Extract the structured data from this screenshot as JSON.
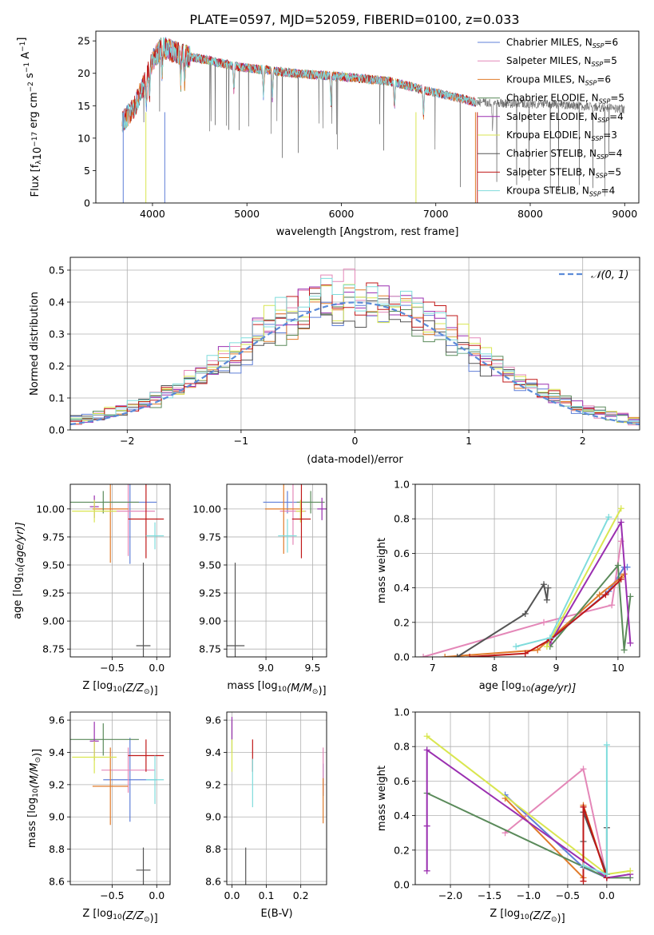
{
  "figure_title": "PLATE=0597, MJD=52059, FIBERID=0100, z=0.033",
  "colors": {
    "Chabrier MILES": "#5f7fd8",
    "Salpeter MILES": "#e487b8",
    "Kroupa MILES": "#e07b2a",
    "Chabrier ELODIE": "#5a8a5a",
    "Salpeter ELODIE": "#9a2fb0",
    "Kroupa ELODIE": "#d9e650",
    "Chabrier STELIB": "#555555",
    "Salpeter STELIB": "#c01818",
    "Kroupa STELIB": "#7fdcdc",
    "normal": "#5b8bd8"
  },
  "chart_data": [
    {
      "id": "spectrum",
      "type": "line",
      "xlabel": "wavelength [Angstrom, rest frame]",
      "ylabel_main": "Flux [f",
      "ylabel_sub": "λ",
      "ylabel_rest": "10",
      "ylabel_exp": "−17",
      "ylabel_units": " erg cm",
      "ylabel_exp2": "−2",
      "ylabel_s": " s",
      "ylabel_exp3": "−1",
      "ylabel_A": " A",
      "ylabel_exp4": "−1",
      "ylabel_end": "]",
      "xlim": [
        3400,
        9150
      ],
      "ylim": [
        0,
        26.5
      ],
      "xticks": [
        4000,
        5000,
        6000,
        7000,
        8000,
        9000
      ],
      "yticks": [
        0,
        5,
        10,
        15,
        20,
        25
      ],
      "legend_position": "top-right",
      "legend": [
        {
          "name": "Chabrier MILES",
          "nssp": "6"
        },
        {
          "name": "Salpeter MILES",
          "nssp": "5"
        },
        {
          "name": "Kroupa MILES",
          "nssp": "6"
        },
        {
          "name": "Chabrier ELODIE",
          "nssp": "5"
        },
        {
          "name": "Salpeter ELODIE",
          "nssp": "4"
        },
        {
          "name": "Kroupa ELODIE",
          "nssp": "3"
        },
        {
          "name": "Chabrier STELIB",
          "nssp": "4"
        },
        {
          "name": "Salpeter STELIB",
          "nssp": "5"
        },
        {
          "name": "Kroupa STELIB",
          "nssp": "4"
        }
      ],
      "continuum": [
        [
          3680,
          12.5
        ],
        [
          3800,
          14.5
        ],
        [
          3900,
          18
        ],
        [
          4000,
          22
        ],
        [
          4100,
          24
        ],
        [
          4200,
          23.5
        ],
        [
          4400,
          22.5
        ],
        [
          4600,
          22
        ],
        [
          4900,
          21
        ],
        [
          5200,
          20.5
        ],
        [
          5500,
          20
        ],
        [
          6000,
          19.5
        ],
        [
          6500,
          18.8
        ],
        [
          7000,
          17
        ],
        [
          7300,
          16
        ],
        [
          7420,
          15.5
        ],
        [
          8000,
          15.3
        ],
        [
          8500,
          15
        ],
        [
          9000,
          14.5
        ]
      ],
      "series_ranges": [
        {
          "name": "Chabrier STELIB",
          "range": [
            3680,
            9000
          ]
        },
        {
          "name": "Chabrier ELODIE",
          "range": [
            3900,
            6800
          ]
        },
        {
          "name": "Kroupa ELODIE",
          "range": [
            3900,
            6800
          ]
        },
        {
          "name": "Salpeter ELODIE",
          "range": [
            3900,
            6800
          ]
        },
        {
          "name": "Chabrier MILES",
          "range": [
            3680,
            7420
          ]
        },
        {
          "name": "Salpeter MILES",
          "range": [
            3680,
            7420
          ]
        },
        {
          "name": "Kroupa MILES",
          "range": [
            3680,
            7420
          ]
        },
        {
          "name": "Salpeter STELIB",
          "range": [
            3680,
            7420
          ]
        },
        {
          "name": "Kroupa STELIB",
          "range": [
            3680,
            7420
          ]
        }
      ]
    },
    {
      "id": "residuals",
      "type": "step",
      "xlabel": "(data-model)/error",
      "ylabel": "Normed distribution",
      "xlim": [
        -2.5,
        2.5
      ],
      "ylim": [
        0,
        0.54
      ],
      "xticks": [
        -2,
        -1,
        0,
        1,
        2
      ],
      "yticks": [
        0.0,
        0.1,
        0.2,
        0.3,
        0.4,
        0.5
      ],
      "grid": true,
      "legend_position": "top-right",
      "legend_label": "𝒩(0, 1)",
      "bin_width": 0.1
    },
    {
      "id": "age_vs_Z",
      "type": "errorbar",
      "xlabel_main": "Z [log",
      "xlabel_sub": "10",
      "xlabel_rest": "(Z/Z",
      "xlabel_sub2": "⊙",
      "xlabel_end": ")]",
      "ylabel_main": "age  [log",
      "ylabel_sub": "10",
      "ylabel_rest": "(age/yr)]",
      "xlim": [
        -0.97,
        0.15
      ],
      "ylim": [
        8.68,
        10.22
      ],
      "xticks": [
        -0.5,
        0.0
      ],
      "xticklabels": [
        "−0.5",
        "0.0"
      ],
      "yticks": [
        8.75,
        9.0,
        9.25,
        9.5,
        9.75,
        10.0
      ],
      "yticklabels": [
        "8.75",
        "9.00",
        "9.25",
        "9.50",
        "9.75",
        "10.00"
      ],
      "points": [
        {
          "name": "Chabrier MILES",
          "x": -0.3,
          "xerr": 0.3,
          "y": 10.06,
          "yerr": 0.55
        },
        {
          "name": "Salpeter MILES",
          "x": -0.32,
          "xerr": 0.3,
          "y": 9.98,
          "yerr": 0.4
        },
        {
          "name": "Kroupa MILES",
          "x": -0.52,
          "xerr": 0.2,
          "y": 10.0,
          "yerr": 0.48
        },
        {
          "name": "Chabrier ELODIE",
          "x": -0.6,
          "xerr": 0.4,
          "y": 10.06,
          "yerr": 0.1
        },
        {
          "name": "Salpeter ELODIE",
          "x": -0.7,
          "xerr": 0.05,
          "y": 10.02,
          "yerr": 0.1
        },
        {
          "name": "Kroupa ELODIE",
          "x": -0.7,
          "xerr": 0.25,
          "y": 9.98,
          "yerr": 0.1
        },
        {
          "name": "Chabrier STELIB",
          "x": -0.15,
          "xerr": 0.08,
          "y": 8.78,
          "yerr": 0.74
        },
        {
          "name": "Salpeter STELIB",
          "x": -0.12,
          "xerr": 0.2,
          "y": 9.91,
          "yerr": 0.35
        },
        {
          "name": "Kroupa STELIB",
          "x": -0.02,
          "xerr": 0.1,
          "y": 9.76,
          "yerr": 0.12
        }
      ]
    },
    {
      "id": "age_vs_mass",
      "type": "errorbar",
      "xlabel_main": "mass [log",
      "xlabel_sub": "10",
      "xlabel_rest": "(M/M",
      "xlabel_sub2": "⊙",
      "xlabel_end": ")]",
      "xlim": [
        8.58,
        9.65
      ],
      "ylim": [
        8.68,
        10.22
      ],
      "xticks": [
        9.0,
        9.5
      ],
      "xticklabels": [
        "9.0",
        "9.5"
      ],
      "yticks": [
        8.75,
        9.0,
        9.25,
        9.5,
        9.75,
        10.0
      ],
      "yticklabels": [
        "8.75",
        "9.00",
        "9.25",
        "9.50",
        "9.75",
        "10.00"
      ],
      "points": [
        {
          "name": "Chabrier MILES",
          "x": 9.23,
          "xerr": 0.26,
          "y": 10.06,
          "yerr": 0.1
        },
        {
          "name": "Salpeter MILES",
          "x": 9.29,
          "xerr": 0.14,
          "y": 9.98,
          "yerr": 0.3
        },
        {
          "name": "Kroupa MILES",
          "x": 9.19,
          "xerr": 0.2,
          "y": 10.0,
          "yerr": 0.4
        },
        {
          "name": "Chabrier ELODIE",
          "x": 9.48,
          "xerr": 0.15,
          "y": 10.06,
          "yerr": 0.1
        },
        {
          "name": "Salpeter ELODIE",
          "x": 9.6,
          "xerr": 0.05,
          "y": 10.0,
          "yerr": 0.1
        },
        {
          "name": "Kroupa ELODIE",
          "x": 9.37,
          "xerr": 0.05,
          "y": 9.98,
          "yerr": 0.1
        },
        {
          "name": "Chabrier STELIB",
          "x": 8.67,
          "xerr": 0.1,
          "y": 8.78,
          "yerr": 0.74
        },
        {
          "name": "Salpeter STELIB",
          "x": 9.38,
          "xerr": 0.1,
          "y": 9.91,
          "yerr": 0.35
        },
        {
          "name": "Kroupa STELIB",
          "x": 9.23,
          "xerr": 0.1,
          "y": 9.76,
          "yerr": 0.15
        }
      ]
    },
    {
      "id": "weight_vs_age",
      "type": "line",
      "xlabel_main": "age  [log",
      "xlabel_sub": "10",
      "xlabel_rest": "(age/yr)]",
      "ylabel": "mass weight",
      "xlim": [
        6.72,
        10.35
      ],
      "ylim": [
        0,
        1.0
      ],
      "xticks": [
        7,
        8,
        9,
        10
      ],
      "yticks": [
        0.0,
        0.2,
        0.4,
        0.6,
        0.8,
        1.0
      ],
      "grid": true,
      "series": [
        {
          "name": "Chabrier MILES",
          "x": [
            8.85,
            9.85,
            10.1,
            10.15
          ],
          "y": [
            0.08,
            0.38,
            0.52,
            0.52
          ]
        },
        {
          "name": "Salpeter MILES",
          "x": [
            6.85,
            8.8,
            9.9,
            10.05
          ],
          "y": [
            0.0,
            0.2,
            0.3,
            0.67
          ]
        },
        {
          "name": "Kroupa MILES",
          "x": [
            7.2,
            8.7,
            9.7,
            10.05,
            10.1
          ],
          "y": [
            0.0,
            0.04,
            0.36,
            0.46,
            0.48
          ]
        },
        {
          "name": "Chabrier ELODIE",
          "x": [
            8.9,
            10.0,
            10.1,
            10.2
          ],
          "y": [
            0.06,
            0.53,
            0.04,
            0.35
          ]
        },
        {
          "name": "Salpeter ELODIE",
          "x": [
            8.9,
            10.05,
            10.2
          ],
          "y": [
            0.08,
            0.78,
            0.08
          ]
        },
        {
          "name": "Kroupa ELODIE",
          "x": [
            8.85,
            10.05
          ],
          "y": [
            0.06,
            0.86
          ]
        },
        {
          "name": "Chabrier STELIB",
          "x": [
            7.4,
            8.5,
            8.8,
            8.85,
            8.87
          ],
          "y": [
            0.0,
            0.25,
            0.42,
            0.33,
            0.4
          ]
        },
        {
          "name": "Salpeter STELIB",
          "x": [
            7.6,
            8.5,
            8.9,
            9.8,
            10.05
          ],
          "y": [
            0.0,
            0.02,
            0.1,
            0.36,
            0.45
          ]
        },
        {
          "name": "Kroupa STELIB",
          "x": [
            8.35,
            8.9,
            9.85
          ],
          "y": [
            0.06,
            0.11,
            0.81
          ]
        }
      ]
    },
    {
      "id": "mass_vs_Z",
      "type": "errorbar",
      "xlabel_main": "Z [log",
      "xlabel_sub": "10",
      "xlabel_rest": "(Z/Z",
      "xlabel_sub2": "⊙",
      "xlabel_end": ")]",
      "ylabel_main": "mass [log",
      "ylabel_sub": "10",
      "ylabel_rest": "(M/M",
      "ylabel_sub2": "⊙",
      "ylabel_end": ")]",
      "xlim": [
        -0.97,
        0.15
      ],
      "ylim": [
        8.58,
        9.65
      ],
      "xticks": [
        -0.5,
        0.0
      ],
      "xticklabels": [
        "−0.5",
        "0.0"
      ],
      "yticks": [
        8.6,
        8.8,
        9.0,
        9.2,
        9.4,
        9.6
      ],
      "yticklabels": [
        "8.6",
        "8.8",
        "9.0",
        "9.2",
        "9.4",
        "9.6"
      ],
      "points": [
        {
          "name": "Chabrier MILES",
          "x": -0.3,
          "xerr": 0.3,
          "y": 9.23,
          "yerr": 0.26
        },
        {
          "name": "Salpeter MILES",
          "x": -0.32,
          "xerr": 0.3,
          "y": 9.29,
          "yerr": 0.14
        },
        {
          "name": "Kroupa MILES",
          "x": -0.52,
          "xerr": 0.2,
          "y": 9.19,
          "yerr": 0.24
        },
        {
          "name": "Chabrier ELODIE",
          "x": -0.6,
          "xerr": 0.4,
          "y": 9.48,
          "yerr": 0.1
        },
        {
          "name": "Salpeter ELODIE",
          "x": -0.7,
          "xerr": 0.05,
          "y": 9.47,
          "yerr": 0.12
        },
        {
          "name": "Kroupa ELODIE",
          "x": -0.7,
          "xerr": 0.25,
          "y": 9.37,
          "yerr": 0.1
        },
        {
          "name": "Chabrier STELIB",
          "x": -0.15,
          "xerr": 0.08,
          "y": 8.67,
          "yerr": 0.14
        },
        {
          "name": "Salpeter STELIB",
          "x": -0.12,
          "xerr": 0.2,
          "y": 9.38,
          "yerr": 0.1
        },
        {
          "name": "Kroupa STELIB",
          "x": -0.02,
          "xerr": 0.1,
          "y": 9.23,
          "yerr": 0.15
        }
      ]
    },
    {
      "id": "mass_vs_ebv",
      "type": "errorbar",
      "xlabel": "E(B-V)",
      "xlim": [
        -0.015,
        0.275
      ],
      "ylim": [
        8.58,
        9.65
      ],
      "xticks": [
        0.0,
        0.1,
        0.2
      ],
      "xticklabels": [
        "0.0",
        "0.1",
        "0.2"
      ],
      "yticks": [
        8.6,
        8.8,
        9.0,
        9.2,
        9.4,
        9.6
      ],
      "yticklabels": [
        "8.6",
        "8.8",
        "9.0",
        "9.2",
        "9.4",
        "9.6"
      ],
      "points": [
        {
          "name": "Chabrier MILES",
          "x": 0.265,
          "y": 9.23,
          "yerr": 0.1
        },
        {
          "name": "Salpeter MILES",
          "x": 0.265,
          "y": 9.29,
          "yerr": 0.14
        },
        {
          "name": "Kroupa MILES",
          "x": 0.265,
          "y": 9.1,
          "yerr": 0.14
        },
        {
          "name": "Chabrier ELODIE",
          "x": 0.0,
          "y": 9.5,
          "yerr": 0.1
        },
        {
          "name": "Salpeter ELODIE",
          "x": 0.0,
          "y": 9.55,
          "yerr": 0.07
        },
        {
          "name": "Kroupa ELODIE",
          "x": 0.0,
          "y": 9.38,
          "yerr": 0.1
        },
        {
          "name": "Chabrier STELIB",
          "x": 0.04,
          "y": 8.67,
          "yerr": 0.14
        },
        {
          "name": "Salpeter STELIB",
          "x": 0.06,
          "y": 9.38,
          "yerr": 0.1
        },
        {
          "name": "Kroupa STELIB",
          "x": 0.06,
          "y": 9.21,
          "yerr": 0.15
        }
      ]
    },
    {
      "id": "weight_vs_Z",
      "type": "line",
      "xlabel_main": "Z [log",
      "xlabel_sub": "10",
      "xlabel_rest": "(Z/Z",
      "xlabel_sub2": "⊙",
      "xlabel_end": ")]",
      "ylabel": "mass weight",
      "xlim": [
        -2.45,
        0.42
      ],
      "ylim": [
        0,
        1.0
      ],
      "xticks": [
        -2.0,
        -1.5,
        -1.0,
        -0.5,
        0.0
      ],
      "xticklabels": [
        "−2.0",
        "−1.5",
        "−1.0",
        "−0.5",
        "0.0"
      ],
      "yticks": [
        0.0,
        0.2,
        0.4,
        0.6,
        0.8,
        1.0
      ],
      "grid": true,
      "series": [
        {
          "name": "Chabrier MILES",
          "x": [
            -1.3,
            -0.3,
            0.0
          ],
          "y": [
            0.52,
            0.1,
            0.04
          ]
        },
        {
          "name": "Salpeter MILES",
          "x": [
            -1.3,
            -0.3,
            0.0
          ],
          "y": [
            0.3,
            0.67,
            0.04
          ]
        },
        {
          "name": "Kroupa MILES",
          "x": [
            -1.3,
            -0.3,
            -0.3,
            0.0
          ],
          "y": [
            0.5,
            0.04,
            0.46,
            0.04
          ]
        },
        {
          "name": "Chabrier ELODIE",
          "x": [
            -2.3,
            0.0,
            0.3
          ],
          "y": [
            0.53,
            0.04,
            0.04
          ]
        },
        {
          "name": "Salpeter ELODIE",
          "x": [
            -2.3,
            -2.3,
            -2.3,
            0.0,
            0.3
          ],
          "y": [
            0.08,
            0.34,
            0.78,
            0.04,
            0.06
          ]
        },
        {
          "name": "Kroupa ELODIE",
          "x": [
            -2.3,
            0.0,
            0.3
          ],
          "y": [
            0.86,
            0.06,
            0.08
          ]
        },
        {
          "name": "Chabrier STELIB",
          "x": [
            -0.3,
            -0.3,
            0.0,
            0.0
          ],
          "y": [
            0.25,
            0.42,
            0.06,
            0.33
          ]
        },
        {
          "name": "Salpeter STELIB",
          "x": [
            -0.3,
            -0.3,
            0.0
          ],
          "y": [
            0.02,
            0.45,
            0.04
          ]
        },
        {
          "name": "Kroupa STELIB",
          "x": [
            -0.3,
            0.0,
            0.0
          ],
          "y": [
            0.11,
            0.06,
            0.81
          ]
        }
      ]
    }
  ]
}
